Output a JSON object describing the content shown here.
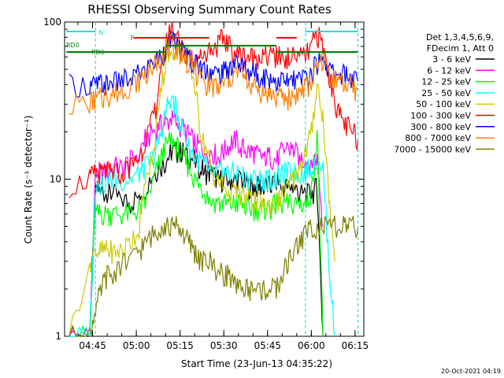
{
  "chart_data": {
    "type": "line",
    "title": "RHESSI Observing Summary Count Rates",
    "xlabel": "Start Time (23-Jun-13 04:35:22)",
    "ylabel": "Count Rate (s⁻¹ detector⁻¹)",
    "yscale": "log",
    "ylim": [
      1,
      100
    ],
    "y_ticks": [
      "1",
      "10",
      "100"
    ],
    "x_ticks": [
      "04:45",
      "05:00",
      "05:15",
      "05:30",
      "05:45",
      "06:00",
      "06:15"
    ],
    "x_tick_minutes": [
      45,
      60,
      75,
      90,
      105,
      120,
      135
    ],
    "x_range_minutes": [
      35.4,
      138
    ],
    "legend_header": [
      "Det 1,3,4,5,6,9,",
      "FDecim 1, Att 0"
    ],
    "annotations": {
      "rd0": "RD0",
      "rd6": "RD6",
      "f": "F",
      "n": "N"
    },
    "timestamp": "20-Oct-2021 04:19",
    "series": [
      {
        "name": "3 - 6 keV",
        "color": "#000000",
        "x": [
          37,
          44,
          46,
          48,
          50,
          52,
          55,
          58,
          61,
          63,
          66,
          68,
          70,
          72,
          74,
          76,
          78,
          80,
          82,
          84,
          86,
          88,
          90,
          92,
          94,
          96,
          98,
          100,
          102,
          104,
          106,
          108,
          110,
          112,
          114,
          116,
          118,
          120,
          122,
          124
        ],
        "y": [
          1,
          1,
          8.5,
          8.5,
          8,
          8,
          7.5,
          7,
          8,
          9,
          11,
          12,
          13,
          15,
          15,
          15,
          14,
          13,
          12,
          11,
          11,
          10,
          10,
          10,
          10,
          10,
          9,
          9,
          9,
          9,
          9,
          10,
          9,
          9,
          9,
          8,
          8,
          8,
          9,
          1
        ]
      },
      {
        "name": "6 - 12 keV",
        "color": "#ff00ff",
        "x": [
          37,
          44,
          46,
          48,
          50,
          52,
          55,
          58,
          61,
          63,
          66,
          68,
          70,
          72,
          74,
          76,
          78,
          80,
          82,
          84,
          86,
          88,
          90,
          92,
          94,
          96,
          98,
          100,
          102,
          104,
          106,
          108,
          110,
          112,
          114,
          116,
          118,
          120,
          122,
          124
        ],
        "y": [
          1,
          1,
          11,
          11,
          11,
          12,
          12,
          13,
          15,
          18,
          20,
          22,
          23,
          24,
          23,
          21,
          19,
          17,
          16,
          15,
          15,
          14,
          15,
          17,
          18,
          16,
          15,
          15,
          14,
          14,
          14,
          13,
          15,
          16,
          15,
          14,
          13,
          13,
          14,
          5
        ]
      },
      {
        "name": "12 - 25 keV",
        "color": "#00ff00",
        "x": [
          37,
          44,
          46,
          48,
          50,
          52,
          55,
          58,
          61,
          63,
          66,
          68,
          70,
          72,
          74,
          76,
          78,
          80,
          82,
          84,
          86,
          88,
          90,
          92,
          94,
          96,
          98,
          100,
          102,
          104,
          106,
          108,
          110,
          112,
          114,
          116,
          118,
          120,
          122,
          124
        ],
        "y": [
          1,
          1,
          6,
          6,
          6,
          6,
          6,
          6,
          6.5,
          7,
          10,
          13,
          16,
          18,
          16,
          14,
          12,
          10,
          9,
          8,
          7.5,
          7,
          7,
          7,
          7,
          7,
          6.5,
          6.5,
          6.5,
          6.5,
          6.5,
          7,
          7,
          7,
          7,
          7,
          7,
          8,
          20,
          1
        ]
      },
      {
        "name": "25 - 50 keV",
        "color": "#00ffff",
        "x": [
          37,
          44,
          46,
          48,
          50,
          52,
          55,
          58,
          61,
          63,
          66,
          68,
          70,
          72,
          74,
          76,
          78,
          80,
          82,
          84,
          86,
          88,
          90,
          92,
          94,
          96,
          98,
          100,
          102,
          104,
          106,
          108,
          110,
          112,
          114,
          116,
          118,
          120,
          122,
          124,
          126,
          128
        ],
        "y": [
          1,
          1,
          9.5,
          9.5,
          9.5,
          10,
          10,
          10,
          11,
          12,
          14,
          18,
          27,
          34,
          27,
          20,
          16,
          14,
          13,
          12,
          11,
          11,
          11,
          11,
          11,
          11,
          10,
          10,
          10,
          10,
          10,
          10,
          11,
          11,
          11,
          11,
          11,
          12,
          14,
          12,
          3,
          1
        ]
      },
      {
        "name": "50 - 100 keV",
        "color": "#cccc00",
        "x": [
          37,
          44,
          46,
          48,
          50,
          52,
          55,
          58,
          61,
          63,
          66,
          68,
          70,
          72,
          74,
          76,
          78,
          80,
          82,
          84,
          86,
          88,
          90,
          92,
          94,
          96,
          98,
          100,
          102,
          104,
          106,
          108,
          110,
          112,
          114,
          116,
          118,
          120,
          122,
          124,
          126,
          128
        ],
        "y": [
          1,
          3,
          3.5,
          3.5,
          3.5,
          3.5,
          3.5,
          4,
          5,
          9,
          15,
          35,
          55,
          65,
          70,
          68,
          60,
          40,
          20,
          15,
          11,
          10,
          9,
          8.5,
          8,
          8,
          7.5,
          7.5,
          7,
          7,
          7,
          7,
          8,
          9,
          10,
          12,
          15,
          20,
          40,
          25,
          8,
          3
        ]
      },
      {
        "name": "100 - 300 keV",
        "color": "#ff0000",
        "x": [
          37,
          44,
          46,
          48,
          50,
          52,
          55,
          58,
          61,
          63,
          66,
          68,
          70,
          72,
          74,
          76,
          78,
          80,
          82,
          84,
          86,
          88,
          90,
          92,
          94,
          96,
          98,
          100,
          102,
          104,
          106,
          108,
          110,
          112,
          114,
          116,
          118,
          120,
          122,
          124,
          126,
          128,
          130,
          132,
          134,
          136
        ],
        "y": [
          9,
          10,
          11,
          11,
          11,
          11,
          11,
          12,
          14,
          17,
          25,
          40,
          70,
          95,
          80,
          65,
          60,
          60,
          62,
          66,
          70,
          72,
          80,
          70,
          64,
          62,
          60,
          60,
          60,
          60,
          60,
          60,
          60,
          60,
          60,
          60,
          60,
          70,
          85,
          70,
          45,
          32,
          25,
          22,
          20,
          18
        ]
      },
      {
        "name": "300 - 800 keV",
        "color": "#0000ff",
        "x": [
          37,
          44,
          46,
          48,
          50,
          52,
          55,
          58,
          61,
          63,
          66,
          68,
          70,
          72,
          74,
          76,
          78,
          80,
          82,
          84,
          86,
          88,
          90,
          92,
          94,
          96,
          98,
          100,
          102,
          104,
          106,
          108,
          110,
          112,
          114,
          116,
          118,
          120,
          122,
          124,
          126,
          128,
          130,
          132,
          134,
          136
        ],
        "y": [
          40,
          40,
          40,
          40,
          40,
          41,
          42,
          44,
          47,
          50,
          55,
          60,
          68,
          75,
          72,
          66,
          60,
          55,
          52,
          50,
          48,
          47,
          48,
          52,
          55,
          53,
          50,
          48,
          46,
          45,
          44,
          43,
          42,
          42,
          42,
          43,
          45,
          48,
          55,
          60,
          50,
          48,
          47,
          46,
          44,
          42
        ]
      },
      {
        "name": "800 - 7000 keV",
        "color": "#ff8000",
        "x": [
          37,
          44,
          46,
          48,
          50,
          52,
          55,
          58,
          61,
          63,
          66,
          68,
          70,
          72,
          74,
          76,
          78,
          80,
          82,
          84,
          86,
          88,
          90,
          92,
          94,
          96,
          98,
          100,
          102,
          104,
          106,
          108,
          110,
          112,
          114,
          116,
          118,
          120,
          122,
          124,
          126,
          128,
          130,
          132,
          134,
          136
        ],
        "y": [
          30,
          31,
          32,
          33,
          34,
          35,
          37,
          40,
          43,
          47,
          53,
          60,
          68,
          72,
          68,
          61,
          55,
          48,
          44,
          41,
          39,
          38,
          39,
          44,
          48,
          46,
          42,
          39,
          37,
          36,
          35,
          34,
          33,
          33,
          34,
          36,
          38,
          42,
          50,
          58,
          48,
          44,
          42,
          40,
          38,
          37
        ]
      },
      {
        "name": "7000 - 15000 keV",
        "color": "#808000",
        "x": [
          37,
          44,
          46,
          48,
          50,
          52,
          55,
          58,
          61,
          63,
          66,
          68,
          70,
          72,
          74,
          76,
          78,
          80,
          82,
          84,
          86,
          88,
          90,
          92,
          94,
          96,
          98,
          100,
          102,
          104,
          106,
          108,
          110,
          112,
          114,
          116,
          118,
          120,
          122,
          124,
          126,
          128,
          130,
          132,
          134,
          136
        ],
        "y": [
          1,
          1,
          1.5,
          2,
          2.5,
          2.5,
          3,
          3,
          3.5,
          4,
          4.5,
          5,
          5,
          5,
          5,
          4.5,
          4,
          3.5,
          3,
          3,
          3,
          2.5,
          2.5,
          2.5,
          2,
          2,
          2,
          2,
          2,
          2,
          2,
          2,
          2.5,
          3,
          3.5,
          4,
          4.5,
          5,
          5,
          5,
          5,
          5,
          5,
          5,
          5,
          5
        ]
      }
    ]
  }
}
